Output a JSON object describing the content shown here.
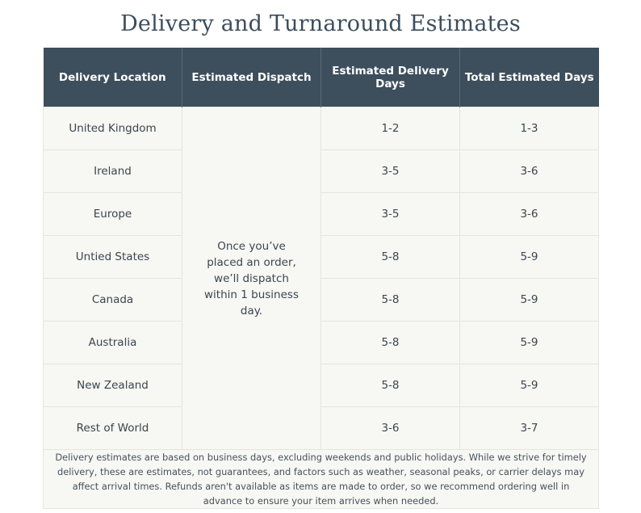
{
  "title": "Delivery and Turnaround Estimates",
  "headers": {
    "location": "Delivery Location",
    "dispatch": "Estimated Dispatch",
    "delivery_days": "Estimated Delivery Days",
    "total_days": "Total Estimated Days"
  },
  "dispatch_text": "Once you’ve placed an order, we’ll dispatch within 1 business day.",
  "rows": [
    {
      "location": "United Kingdom",
      "delivery": "1-2",
      "total": "1-3"
    },
    {
      "location": "Ireland",
      "delivery": "3-5",
      "total": "3-6"
    },
    {
      "location": "Europe",
      "delivery": "3-5",
      "total": "3-6"
    },
    {
      "location": "Untied States",
      "delivery": "5-8",
      "total": "5-9"
    },
    {
      "location": "Canada",
      "delivery": "5-8",
      "total": "5-9"
    },
    {
      "location": "Australia",
      "delivery": "5-8",
      "total": "5-9"
    },
    {
      "location": "New Zealand",
      "delivery": "5-8",
      "total": "5-9"
    },
    {
      "location": "Rest of World",
      "delivery": "3-6",
      "total": "3-7"
    }
  ],
  "footnote": "Delivery estimates are based on business days, excluding weekends and public holidays. While we strive for timely delivery, these are estimates, not guarantees, and factors such as weather, seasonal peaks, or carrier delays may affect arrival times. Refunds aren't available as items are made to order, so we recommend ordering well in advance to ensure your item arrives when needed.",
  "colors": {
    "header_bg": "#3d4e5c",
    "cell_bg": "#f7f7f3",
    "title": "#3c4d5c"
  }
}
